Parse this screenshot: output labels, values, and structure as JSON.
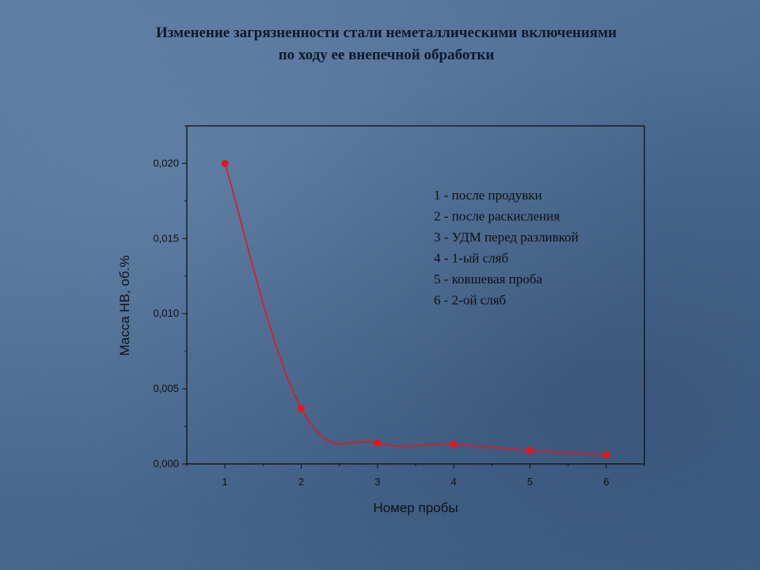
{
  "page": {
    "title_line1": "Изменение загрязненности стали неметаллическими включениями",
    "title_line2": "по ходу ее внепечной обработки"
  },
  "chart_data": {
    "type": "line",
    "x": [
      1,
      2,
      3,
      4,
      5,
      6
    ],
    "values": [
      0.02,
      0.0037,
      0.0014,
      0.0013,
      0.0009,
      0.0006
    ],
    "xlabel": "Номер пробы",
    "ylabel": "Масса НВ, об.%",
    "xlim": [
      0.5,
      6.5
    ],
    "ylim": [
      0,
      0.0225
    ],
    "x_ticks": [
      "1",
      "2",
      "3",
      "4",
      "5",
      "6"
    ],
    "y_ticks": [
      "0,000",
      "0,005",
      "0,010",
      "0,015",
      "0,020"
    ],
    "y_tick_values": [
      0,
      0.005,
      0.01,
      0.015,
      0.02
    ],
    "line_color": "#e8141c",
    "grid": false,
    "legend_position": "top-right",
    "legend_lines": [
      "1 - после продувки",
      "2 - после раскисления",
      "3 - УДМ перед разливкой",
      "4 - 1-ый сляб",
      "5 - ковшевая проба",
      "6 - 2-ой сляб"
    ]
  }
}
